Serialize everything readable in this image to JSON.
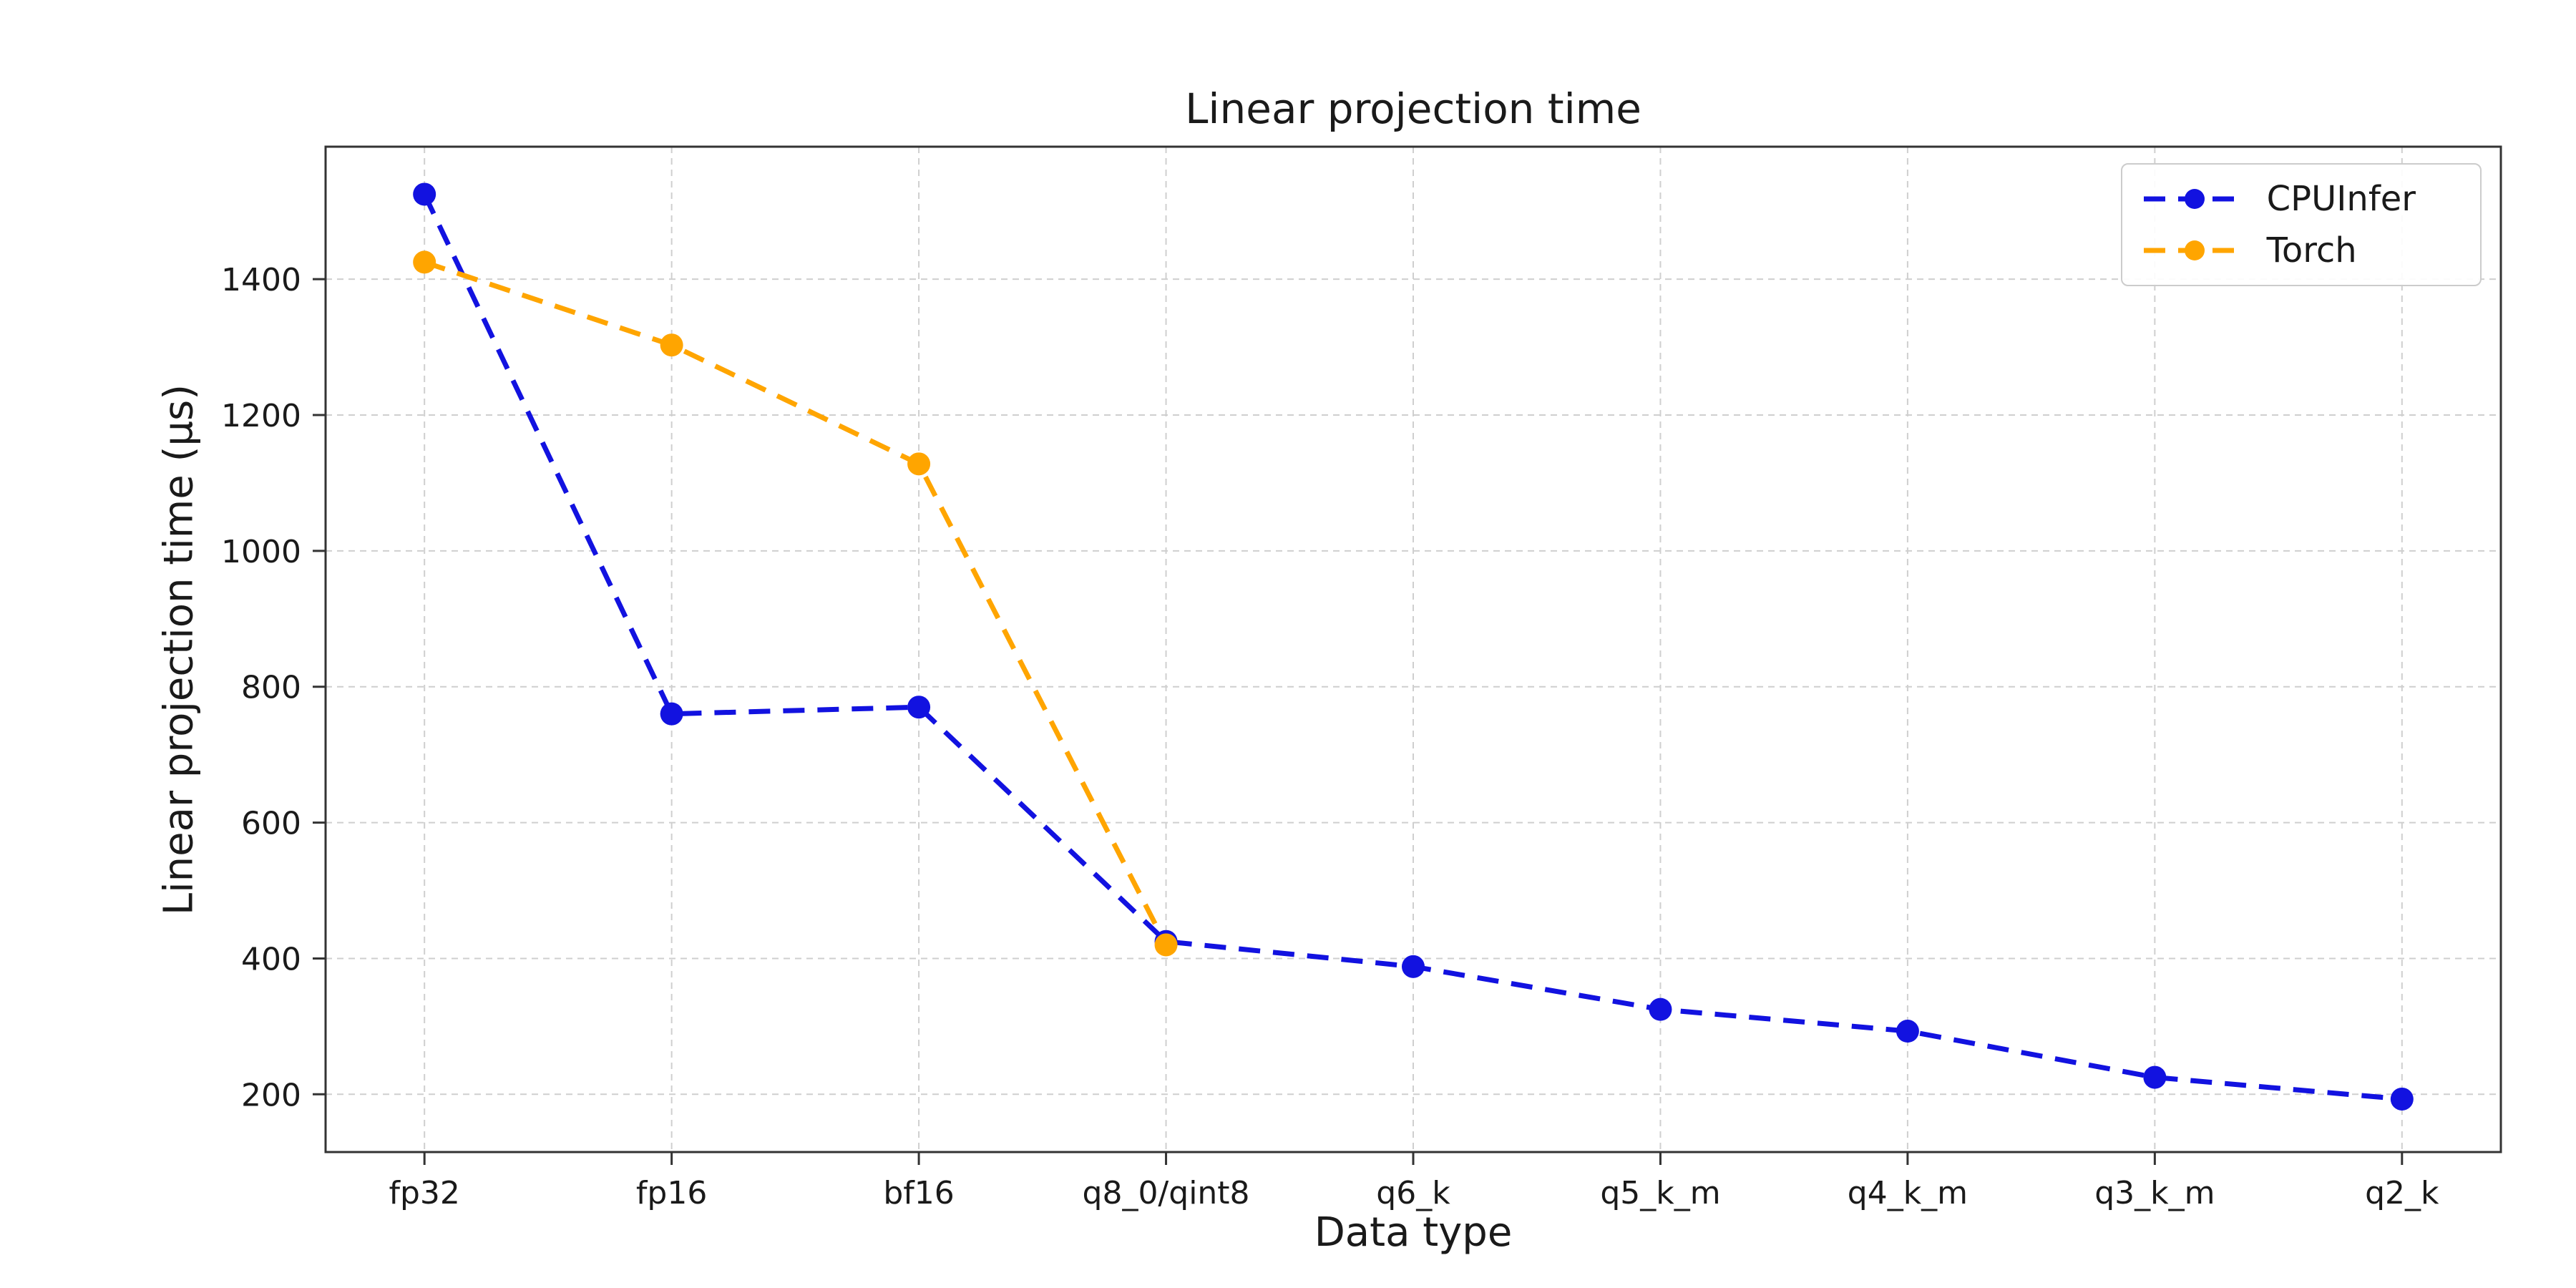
{
  "chart_data": {
    "type": "line",
    "title": "Linear projection time",
    "xlabel": "Data type",
    "ylabel": "Linear projection time (µs)",
    "categories": [
      "fp32",
      "fp16",
      "bf16",
      "q8_0/qint8",
      "q6_k",
      "q5_k_m",
      "q4_k_m",
      "q3_k_m",
      "q2_k"
    ],
    "series": [
      {
        "name": "CPUInfer",
        "color": "#1212e0",
        "line_style": "dashed",
        "marker": "circle",
        "values": [
          1525,
          760,
          770,
          425,
          388,
          325,
          293,
          225,
          193
        ]
      },
      {
        "name": "Torch",
        "color": "#ffa500",
        "line_style": "dashed",
        "marker": "circle",
        "values": [
          1425,
          1303,
          1128,
          420,
          null,
          null,
          null,
          null,
          null
        ]
      }
    ],
    "yticks": [
      200,
      400,
      600,
      800,
      1000,
      1200,
      1400
    ],
    "ylim": [
      115,
      1595
    ],
    "grid": true,
    "grid_style": "dashed",
    "legend_position": "upper right",
    "background": "#ffffff"
  }
}
